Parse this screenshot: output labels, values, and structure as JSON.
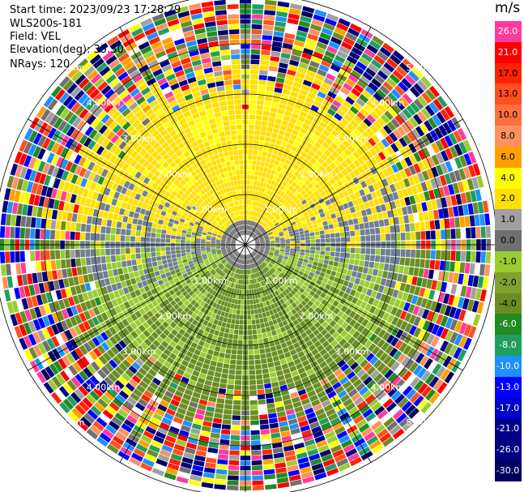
{
  "info": {
    "start_time": "Start time: 2023/09/23 17:28:29",
    "instrument": "WLS200s-181",
    "field": "Field: VEL",
    "elevation": "Elevation(deg): 35.30",
    "nrays": "NRays: 120"
  },
  "colorbar": {
    "unit": "m/s",
    "ticks": [
      "26.0",
      "21.0",
      "17.0",
      "13.0",
      "10.0",
      "8.0",
      "6.0",
      "4.0",
      "2.0",
      "1.0",
      "0.0",
      "-1.0",
      "-2.0",
      "-4.0",
      "-6.0",
      "-8.0",
      "-10.0",
      "-13.0",
      "-17.0",
      "-21.0",
      "-26.0",
      "-30.0"
    ],
    "colors": [
      "#ff3c9c",
      "#ff0000",
      "#ff2200",
      "#ff5020",
      "#ff7040",
      "#ff9060",
      "#ffa000",
      "#ffff00",
      "#ffe000",
      "#a0a0a0",
      "#707070",
      "#9acd32",
      "#80a030",
      "#6b8e23",
      "#228b22",
      "#1f9f5f",
      "#1e90ff",
      "#0000ff",
      "#0000cd",
      "#00008b",
      "#000080",
      "#000060"
    ]
  },
  "range_rings": {
    "labels": [
      "1.00km",
      "2.00km",
      "3.00km",
      "4.00km",
      "5.00km"
    ]
  },
  "chart_data": {
    "type": "heatmap",
    "projection": "polar-ppi",
    "field": "VEL",
    "unit": "m/s",
    "nrays": 120,
    "elevation_deg": 35.3,
    "range_rings_km": [
      1,
      2,
      3,
      4,
      5
    ],
    "colorbar_range": [
      -30,
      26
    ],
    "description_pattern": "positive velocities (yellow) toward north half within ~3 km, negative velocities (green) toward south half within ~3 km, gray near zero in center band, noisy mixed colors beyond ~3 km"
  }
}
